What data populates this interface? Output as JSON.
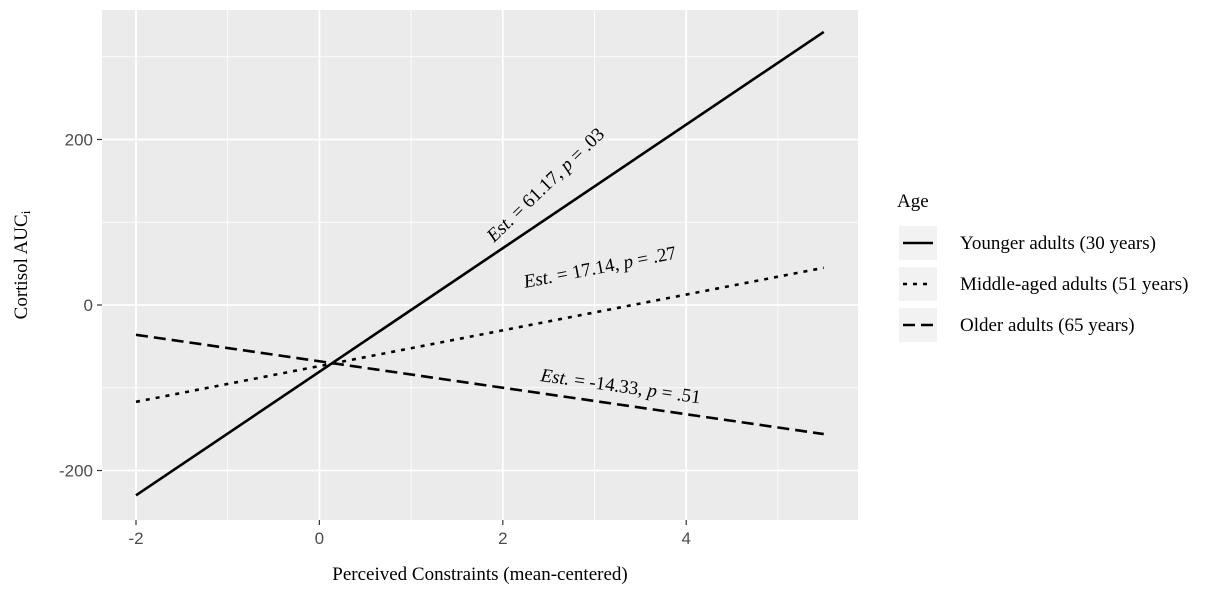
{
  "chart_data": {
    "type": "line",
    "xlabel": "Perceived Constraints (mean-centered)",
    "ylabel": "Cortisol AUC",
    "ylabel_subscript": "i",
    "xlim": [
      -2.2,
      5.9
    ],
    "ylim": [
      -260,
      330
    ],
    "x_ticks": [
      -2,
      0,
      2,
      4
    ],
    "y_ticks": [
      -200,
      0,
      200
    ],
    "x_tick_labels": [
      "-2",
      "0",
      "2",
      "4"
    ],
    "y_tick_labels": [
      "-200",
      "0",
      "200"
    ],
    "grid": true,
    "legend": {
      "title": "Age",
      "position": "right"
    },
    "series": [
      {
        "name": "Younger adults (30 years)",
        "dash": "solid",
        "x": [
          -2,
          5.5
        ],
        "y": [
          -230,
          330
        ]
      },
      {
        "name": "Middle-aged adults (51 years)",
        "dash": "dotted",
        "x": [
          -2,
          5.5
        ],
        "y": [
          -117,
          45
        ]
      },
      {
        "name": "Older adults (65 years)",
        "dash": "dashed",
        "x": [
          -2,
          5.5
        ],
        "y": [
          -36,
          -156
        ]
      }
    ],
    "annotations": [
      {
        "series": 0,
        "italic": "Est.",
        "mid": " = 61.17, ",
        "italic2": "p",
        "tail": " = .03"
      },
      {
        "series": 1,
        "italic": "Est.",
        "mid": " = 17.14, ",
        "italic2": "p",
        "tail": " = .27"
      },
      {
        "series": 2,
        "italic": "Est.",
        "mid": " = -14.33, ",
        "italic2": "p",
        "tail": " = .51"
      }
    ],
    "colors": {
      "panel": "#ebebeb",
      "grid": "#ffffff",
      "line": "#000000",
      "legend_key": "#f2f2f2"
    }
  }
}
